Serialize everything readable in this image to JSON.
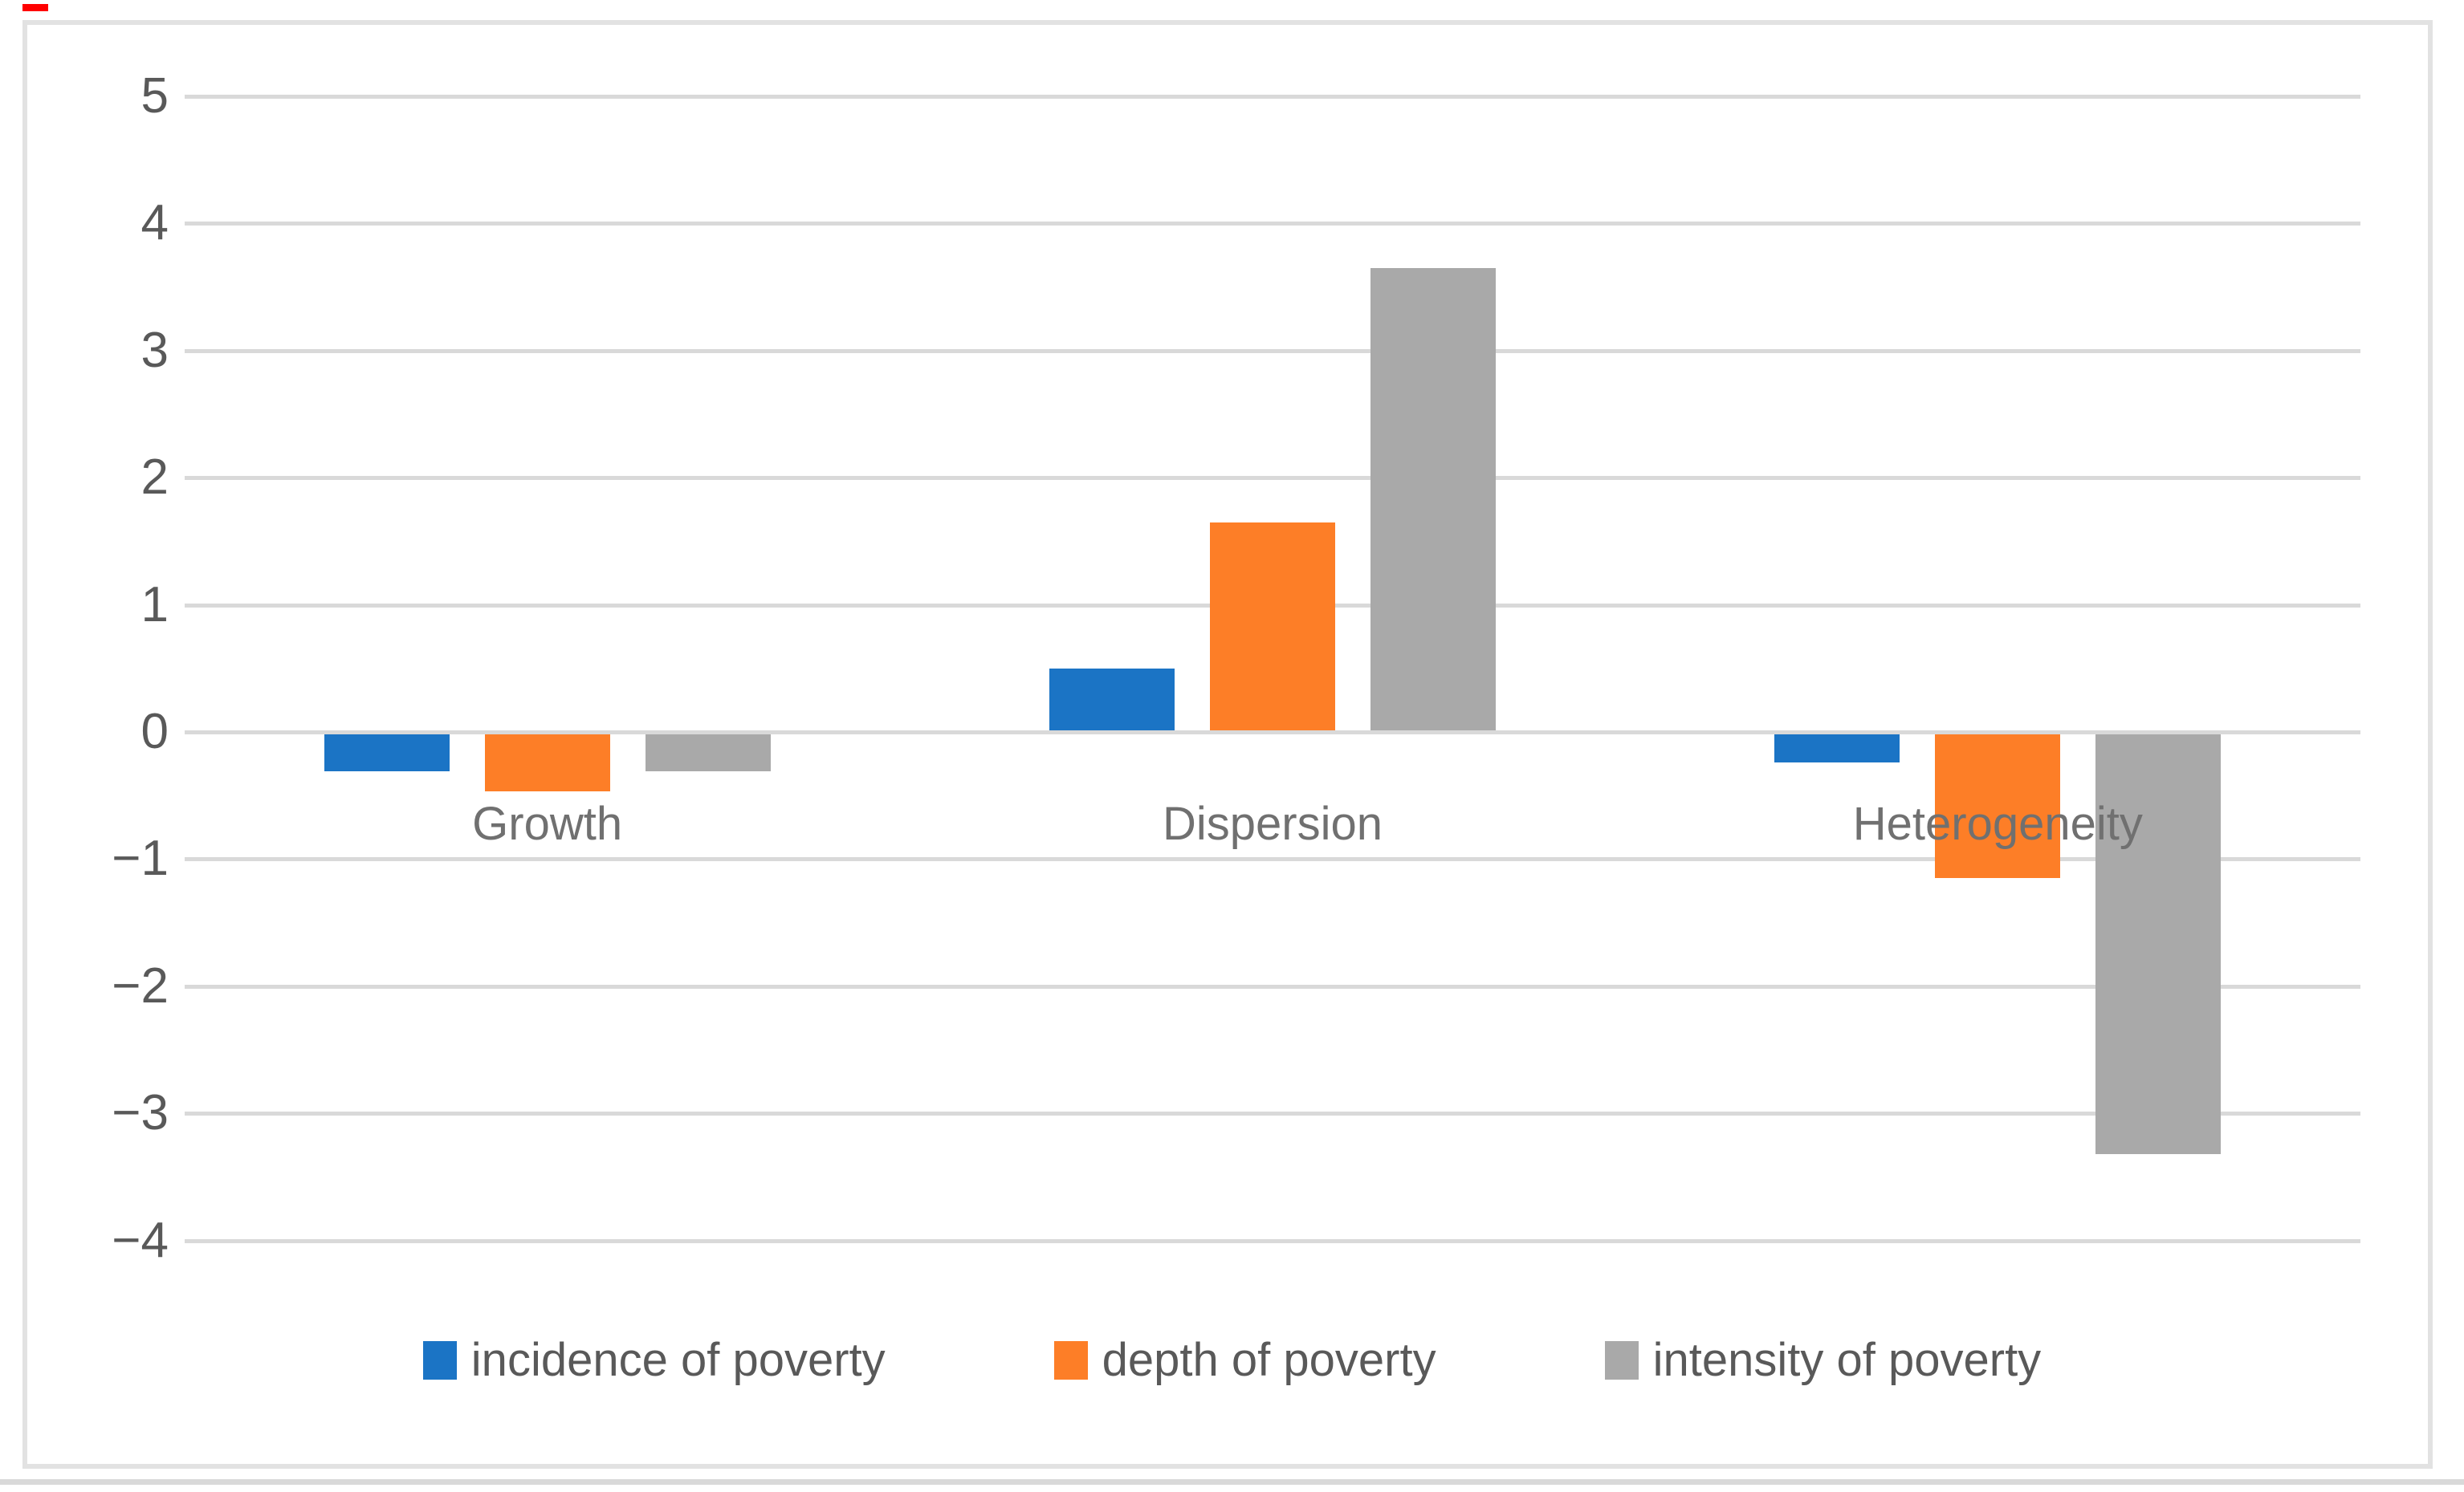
{
  "chart_data": {
    "type": "bar",
    "title": "",
    "categories": [
      "Growth",
      "Dispersion",
      "Heterogeneity"
    ],
    "series": [
      {
        "name": "incidence of poverty",
        "color": "#1B74C5",
        "values": [
          -0.31,
          0.5,
          -0.24
        ]
      },
      {
        "name": "depth of poverty",
        "color": "#FD7E27",
        "values": [
          -0.47,
          1.65,
          -1.15
        ]
      },
      {
        "name": "intensity of poverty",
        "color": "#A9A9A9",
        "values": [
          -0.31,
          3.65,
          -3.32
        ]
      }
    ],
    "xlabel": "",
    "ylabel": "",
    "y_ticks": [
      5,
      4,
      3,
      2,
      1,
      0,
      -1,
      -2,
      -3,
      -4
    ],
    "y_tick_labels": [
      "5",
      "4",
      "3",
      "2",
      "1",
      "0",
      "−1",
      "−2",
      "−3",
      "−4"
    ],
    "ylim": [
      -4,
      5
    ],
    "grid": true,
    "legend_position": "bottom"
  },
  "colors": {
    "background": "#FFFFFF",
    "gridline": "#D9D9D9",
    "frame_border": "#E2E2E2",
    "tick_label_text": "#595959",
    "category_label_text": "#707070",
    "legend_text": "#595959",
    "red_mark": "#FF0000"
  }
}
